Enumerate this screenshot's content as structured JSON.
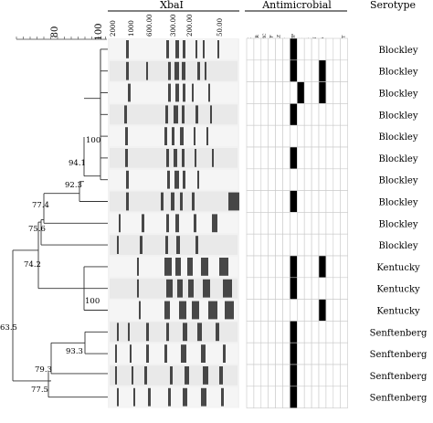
{
  "header": {
    "gel_title": "XbaI",
    "antimicrobial_title": "Antimicrobial",
    "serotype_title": "Serotype"
  },
  "similarity_scale": {
    "ticks": [
      "80",
      "100"
    ]
  },
  "size_markers": [
    "2000",
    "1000",
    "600.00",
    "300.00",
    "200.00",
    "50.00"
  ],
  "antimicrobials": [
    "AK",
    "APR",
    "AMC",
    "CTF",
    "CAZ",
    "CT",
    "AMP",
    "TE",
    "FR",
    "CN",
    "NA",
    "N",
    "S",
    "SXT"
  ],
  "node_values": [
    "100",
    "94.1",
    "92.3",
    "77.4",
    "75.6",
    "74.2",
    "100",
    "63.5",
    "93.3",
    "79.3",
    "77.5"
  ],
  "serotypes": [
    "Blockley",
    "Blockley",
    "Blockley",
    "Blockley",
    "Blockley",
    "Blockley",
    "Blockley",
    "Blockley",
    "Blockley",
    "Blockley",
    "Kentucky",
    "Kentucky",
    "Kentucky",
    "Senftenberg",
    "Senftenberg",
    "Senftenberg",
    "Senftenberg"
  ],
  "resistance_matrix": [
    [
      6
    ],
    [
      6,
      10
    ],
    [
      7,
      10
    ],
    [
      6
    ],
    [],
    [
      6
    ],
    [],
    [
      6
    ],
    [],
    [],
    [
      6,
      10
    ],
    [
      6
    ],
    [
      10
    ],
    [
      6
    ],
    [
      6
    ],
    [
      6
    ],
    [
      6
    ]
  ]
}
